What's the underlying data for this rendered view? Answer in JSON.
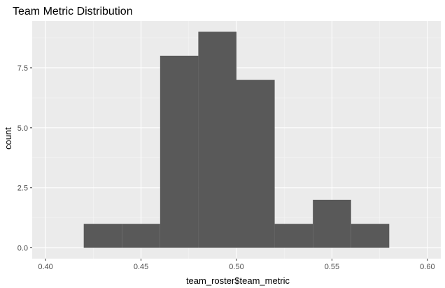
{
  "chart_data": {
    "type": "bar",
    "title": "Team Metric Distribution",
    "xlabel": "team_roster$team_metric",
    "ylabel": "count",
    "xlim": [
      0.393,
      0.607
    ],
    "ylim": [
      -0.45,
      9.45
    ],
    "x_ticks": [
      0.4,
      0.45,
      0.5,
      0.55,
      0.6
    ],
    "x_tick_labels": [
      "0.40",
      "0.45",
      "0.50",
      "0.55",
      "0.60"
    ],
    "y_ticks": [
      0,
      2.5,
      5,
      7.5
    ],
    "y_tick_labels": [
      "0.0",
      "2.5",
      "5.0",
      "7.5"
    ],
    "grid": true,
    "bins": [
      {
        "x0": 0.42,
        "x1": 0.44,
        "count": 1
      },
      {
        "x0": 0.44,
        "x1": 0.46,
        "count": 1
      },
      {
        "x0": 0.46,
        "x1": 0.48,
        "count": 8
      },
      {
        "x0": 0.48,
        "x1": 0.5,
        "count": 9
      },
      {
        "x0": 0.5,
        "x1": 0.52,
        "count": 7
      },
      {
        "x0": 0.52,
        "x1": 0.54,
        "count": 1
      },
      {
        "x0": 0.54,
        "x1": 0.56,
        "count": 2
      },
      {
        "x0": 0.56,
        "x1": 0.58,
        "count": 1
      }
    ],
    "colors": {
      "panel": "#ebebeb",
      "grid_major": "#ffffff",
      "grid_minor": "#f5f5f5",
      "bar_fill": "#595959",
      "tick_text": "#4d4d4d",
      "tick_mark": "#333333"
    }
  }
}
